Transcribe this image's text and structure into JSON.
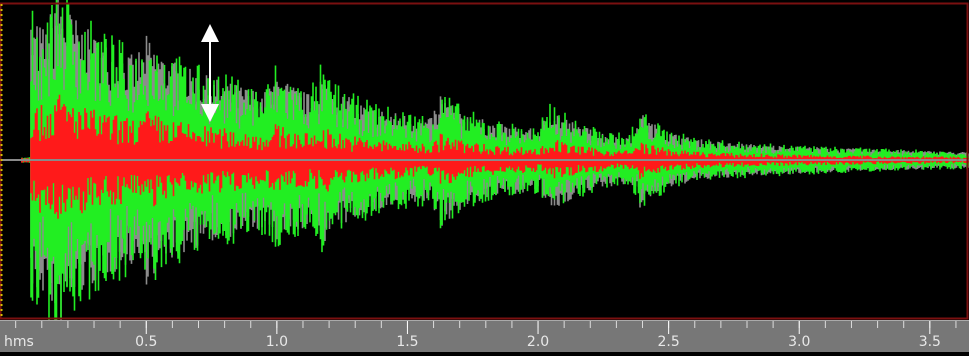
{
  "ruler": {
    "label": "hms",
    "xlim": [
      -0.06,
      3.65
    ],
    "ticks": [
      {
        "value": 0.5,
        "label": "0.5"
      },
      {
        "value": 1.0,
        "label": "1.0"
      },
      {
        "value": 1.5,
        "label": "1.5"
      },
      {
        "value": 2.0,
        "label": "2.0"
      },
      {
        "value": 2.5,
        "label": "2.5"
      },
      {
        "value": 3.0,
        "label": "3.0"
      },
      {
        "value": 3.5,
        "label": "3.5"
      }
    ]
  }
}
